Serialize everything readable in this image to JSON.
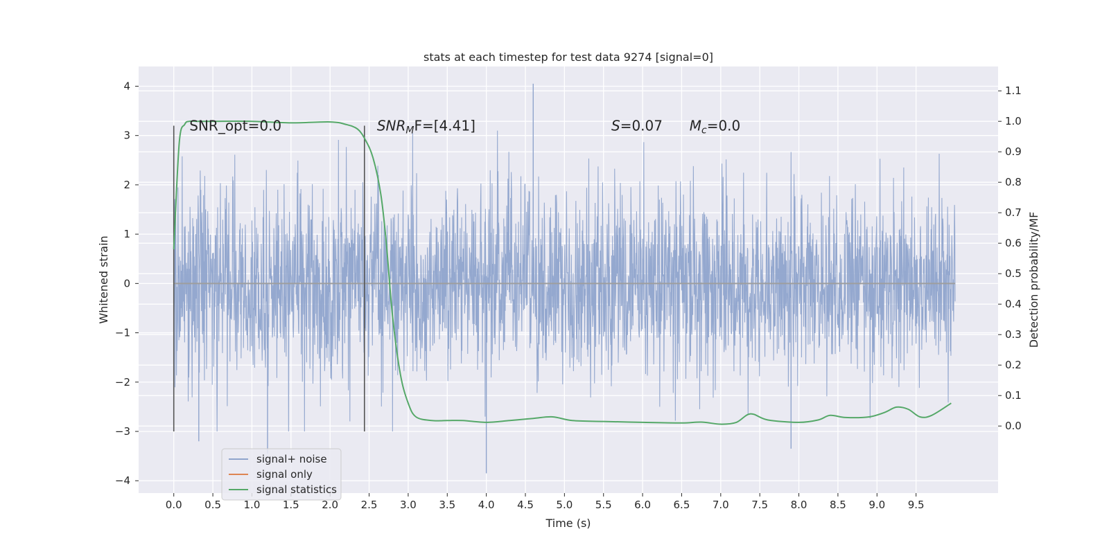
{
  "chart_data": {
    "type": "line",
    "title": "stats at each timestep for test data 9274 [signal=0]",
    "xlabel": "Time (s)",
    "ylabel": "Whitened strain",
    "y2label": "Detection probability/MF",
    "xlim": [
      -0.45,
      10.55
    ],
    "ylim": [
      -4.25,
      4.4
    ],
    "y2lim": [
      -0.22,
      1.18
    ],
    "x_ticks": [
      0.0,
      0.5,
      1.0,
      1.5,
      2.0,
      2.5,
      3.0,
      3.5,
      4.0,
      4.5,
      5.0,
      5.5,
      6.0,
      6.5,
      7.0,
      7.5,
      8.0,
      8.5,
      9.0,
      9.5
    ],
    "x_tick_labels": [
      "0.0",
      "0.5",
      "1.0",
      "1.5",
      "2.0",
      "2.5",
      "3.0",
      "3.5",
      "4.0",
      "4.5",
      "5.0",
      "5.5",
      "6.0",
      "6.5",
      "7.0",
      "7.5",
      "8.0",
      "8.5",
      "9.0",
      "9.5"
    ],
    "y_ticks": [
      4,
      3,
      2,
      1,
      0,
      -1,
      -2,
      -3,
      -4
    ],
    "y_tick_labels": [
      "4",
      "3",
      "2",
      "1",
      "0",
      "−1",
      "−2",
      "−3",
      "−4"
    ],
    "y2_ticks": [
      1.1,
      1.0,
      0.9,
      0.8,
      0.7,
      0.6,
      0.5,
      0.4,
      0.3,
      0.2,
      0.1,
      0.0
    ],
    "y2_tick_labels": [
      "1.1",
      "1.0",
      "0.9",
      "0.8",
      "0.7",
      "0.6",
      "0.5",
      "0.4",
      "0.3",
      "0.2",
      "0.1",
      "0.0"
    ],
    "grid": true,
    "legend_position": "lower-left",
    "colors": {
      "background": "#eaeaf2",
      "grid": "#ffffff",
      "noise": "#8fa4cc",
      "signal": "#dd8452",
      "statistics": "#55a868",
      "marker": "#555555"
    },
    "series": [
      {
        "name": "signal+ noise",
        "axis": "left",
        "style": "dense noise trace",
        "x_range": [
          0.0,
          10.0
        ],
        "envelope_typical": [
          -1.8,
          2.0
        ],
        "notable_extremes": [
          {
            "x": 4.6,
            "y": 4.05
          },
          {
            "x": 4.0,
            "y": -3.85
          },
          {
            "x": 1.2,
            "y": -3.45
          },
          {
            "x": 7.9,
            "y": -3.35
          },
          {
            "x": 0.32,
            "y": -3.2
          }
        ]
      },
      {
        "name": "signal only",
        "axis": "left",
        "x": [
          0.0,
          10.0
        ],
        "y": [
          0.0,
          0.0
        ]
      },
      {
        "name": "signal statistics",
        "axis": "right",
        "x": [
          0.0,
          0.07,
          0.14,
          0.2,
          0.3,
          0.5,
          1.0,
          1.5,
          2.0,
          2.2,
          2.35,
          2.45,
          2.55,
          2.65,
          2.72,
          2.8,
          2.9,
          3.0,
          3.1,
          3.3,
          3.5,
          3.7,
          4.0,
          4.3,
          4.6,
          4.85,
          5.1,
          5.5,
          6.0,
          6.5,
          6.75,
          7.0,
          7.2,
          7.38,
          7.6,
          8.0,
          8.25,
          8.4,
          8.6,
          8.9,
          9.1,
          9.25,
          9.4,
          9.55,
          9.7,
          9.95
        ],
        "y": [
          0.58,
          0.93,
          0.99,
          1.0,
          1.0,
          1.0,
          1.0,
          0.995,
          0.998,
          0.99,
          0.975,
          0.94,
          0.88,
          0.76,
          0.6,
          0.36,
          0.17,
          0.075,
          0.03,
          0.018,
          0.018,
          0.018,
          0.012,
          0.018,
          0.025,
          0.03,
          0.018,
          0.015,
          0.012,
          0.01,
          0.013,
          0.006,
          0.012,
          0.04,
          0.02,
          0.012,
          0.02,
          0.035,
          0.028,
          0.03,
          0.045,
          0.062,
          0.055,
          0.03,
          0.035,
          0.075
        ]
      }
    ],
    "vertical_markers": [
      {
        "x": 0.0,
        "y_range": [
          -3.0,
          3.2
        ]
      },
      {
        "x": 2.44,
        "y_range": [
          -3.0,
          3.2
        ]
      }
    ],
    "annotations": [
      {
        "x": 0.2,
        "y": 3.2,
        "text": "SNR_opt=0.0"
      },
      {
        "x": 2.6,
        "y": 3.2,
        "text_main": "SNR",
        "text_sub": "M",
        "text_rest": "F=[4.41]"
      },
      {
        "x": 5.6,
        "y": 3.2,
        "text_main": "S",
        "text_rest": "=0.07"
      },
      {
        "x": 6.6,
        "y": 3.2,
        "text_main": "M",
        "text_sub": "c",
        "text_rest": "=0.0"
      }
    ]
  }
}
